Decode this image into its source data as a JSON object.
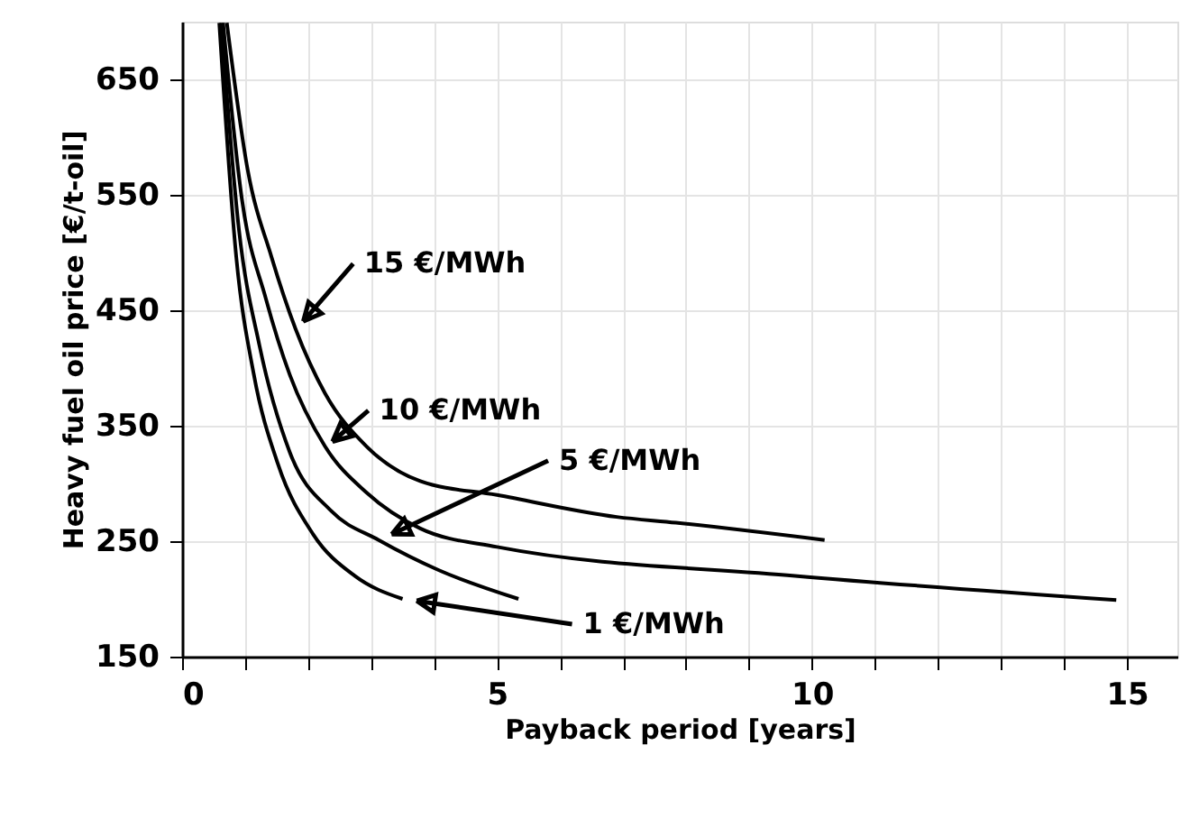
{
  "chart_data": {
    "type": "line",
    "xlabel": "Payback period [years]",
    "ylabel": "Heavy fuel oil price [€/t-oil]",
    "xlim": [
      0,
      15.8
    ],
    "ylim": [
      150,
      700
    ],
    "xticks": [
      0,
      {
        "value": 1,
        "label": null
      },
      {
        "value": 2,
        "label": null
      },
      {
        "value": 3,
        "label": null
      },
      {
        "value": 4,
        "label": null
      },
      5,
      {
        "value": 6,
        "label": null
      },
      {
        "value": 7,
        "label": null
      },
      {
        "value": 8,
        "label": null
      },
      {
        "value": 9,
        "label": null
      },
      10,
      {
        "value": 11,
        "label": null
      },
      {
        "value": 12,
        "label": null
      },
      {
        "value": 13,
        "label": null
      },
      {
        "value": 14,
        "label": null
      },
      15
    ],
    "yticks": [
      150,
      250,
      350,
      450,
      550,
      650
    ],
    "grid": true,
    "marker": "none",
    "line_style": "solid",
    "series": [
      {
        "name": "15 €/MWh",
        "color": "#000000",
        "x": [
          0.71,
          1.04,
          1.42,
          1.8,
          2.27,
          2.93,
          3.78,
          5.0,
          6.9,
          7.84,
          10.2
        ],
        "values": [
          699,
          572,
          496,
          434,
          378,
          332,
          302,
          290,
          271,
          266,
          251
        ]
      },
      {
        "name": "10 €/MWh",
        "color": "#000000",
        "x": [
          0.65,
          0.95,
          1.33,
          1.71,
          2.27,
          2.93,
          3.78,
          5.0,
          9.73,
          14.83
        ],
        "values": [
          699,
          546,
          460,
          394,
          332,
          292,
          261,
          245,
          220,
          199
        ]
      },
      {
        "name": "5 €/MWh",
        "color": "#000000",
        "x": [
          0.62,
          0.9,
          1.23,
          1.71,
          2.37,
          3.12,
          4.07,
          5.34
        ],
        "values": [
          699,
          521,
          419,
          327,
          276,
          251,
          225,
          200
        ]
      },
      {
        "name": "1 €/MWh",
        "color": "#000000",
        "x": [
          0.59,
          0.86,
          1.14,
          1.52,
          2.08,
          2.74,
          3.5
        ],
        "values": [
          699,
          496,
          394,
          317,
          256,
          220,
          200
        ]
      }
    ]
  }
}
